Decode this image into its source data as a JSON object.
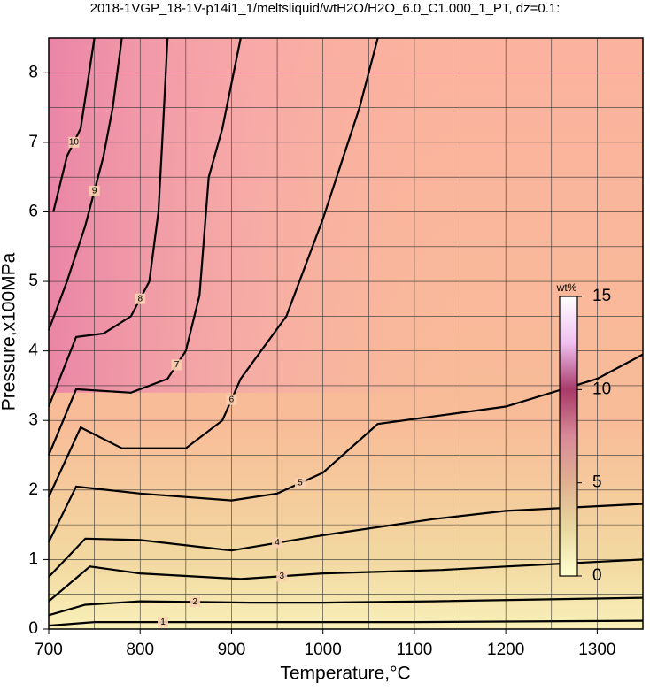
{
  "chart_data": {
    "type": "contour",
    "title": "2018-1VGP_18-1V-p14i1_1/meltsliquid/wtH2O/H2O_6.0_C1.000_1_PT, dz=0.1:",
    "xlabel": "Temperature,°C",
    "ylabel": "Pressure,x100MPa",
    "xlim": [
      700,
      1350
    ],
    "ylim": [
      0,
      8.5
    ],
    "xticks": [
      700,
      800,
      900,
      1000,
      1100,
      1200,
      1300
    ],
    "yticks": [
      0,
      1,
      2,
      3,
      4,
      5,
      6,
      7,
      8
    ],
    "xminorticks": [
      750,
      850,
      950,
      1050,
      1150,
      1250
    ],
    "yminorticks": [
      0.5,
      1.5,
      2.5,
      3.5,
      4.5,
      5.5,
      6.5,
      7.5
    ],
    "grid": true,
    "contours": [
      {
        "level": 1,
        "x": [
          700,
          750,
          900,
          1100,
          1350
        ],
        "y": [
          0.05,
          0.1,
          0.1,
          0.1,
          0.12
        ]
      },
      {
        "level": 2,
        "x": [
          700,
          740,
          800,
          920,
          1000,
          1120,
          1350
        ],
        "y": [
          0.2,
          0.35,
          0.4,
          0.38,
          0.38,
          0.4,
          0.45
        ]
      },
      {
        "level": 3,
        "x": [
          700,
          745,
          800,
          910,
          1000,
          1130,
          1200,
          1350
        ],
        "y": [
          0.4,
          0.9,
          0.8,
          0.72,
          0.8,
          0.85,
          0.9,
          1.0
        ]
      },
      {
        "level": 4,
        "x": [
          700,
          740,
          800,
          900,
          1000,
          1120,
          1200,
          1350
        ],
        "y": [
          0.75,
          1.3,
          1.28,
          1.13,
          1.35,
          1.58,
          1.7,
          1.8
        ]
      },
      {
        "level": 5,
        "x": [
          700,
          730,
          800,
          900,
          950,
          1000,
          1060,
          1200,
          1300,
          1350
        ],
        "y": [
          1.25,
          2.05,
          1.95,
          1.85,
          1.95,
          2.25,
          2.95,
          3.2,
          3.6,
          3.95
        ]
      },
      {
        "level": 6,
        "x": [
          700,
          735,
          780,
          850,
          890,
          910,
          960,
          1000,
          1040,
          1060
        ],
        "y": [
          1.9,
          2.9,
          2.6,
          2.6,
          3.0,
          3.6,
          4.5,
          5.9,
          7.5,
          8.5
        ]
      },
      {
        "level": 7,
        "x": [
          700,
          730,
          790,
          830,
          850,
          865,
          875,
          890,
          910
        ],
        "y": [
          2.5,
          3.45,
          3.4,
          3.6,
          4.0,
          4.8,
          6.5,
          7.2,
          8.5
        ]
      },
      {
        "level": 8,
        "x": [
          700,
          730,
          760,
          790,
          810,
          820,
          825,
          830
        ],
        "y": [
          3.2,
          4.2,
          4.25,
          4.5,
          5.0,
          6.0,
          7.2,
          8.5
        ]
      },
      {
        "level": 9,
        "x": [
          700,
          720,
          740,
          760,
          770,
          780
        ],
        "y": [
          4.3,
          5.0,
          5.8,
          6.8,
          7.5,
          8.5
        ]
      },
      {
        "level": 10,
        "x": [
          705,
          720,
          735,
          750
        ],
        "y": [
          6.0,
          6.8,
          7.2,
          8.5
        ]
      }
    ],
    "colorbar": {
      "label": "wt%",
      "lim": [
        0,
        15
      ],
      "ticks": [
        0,
        5,
        10,
        15
      ],
      "colors": [
        "#ffffd0",
        "#e8d8a0",
        "#e0b090",
        "#d88a98",
        "#a83a68",
        "#f0c0f0",
        "#ffffff"
      ]
    }
  }
}
